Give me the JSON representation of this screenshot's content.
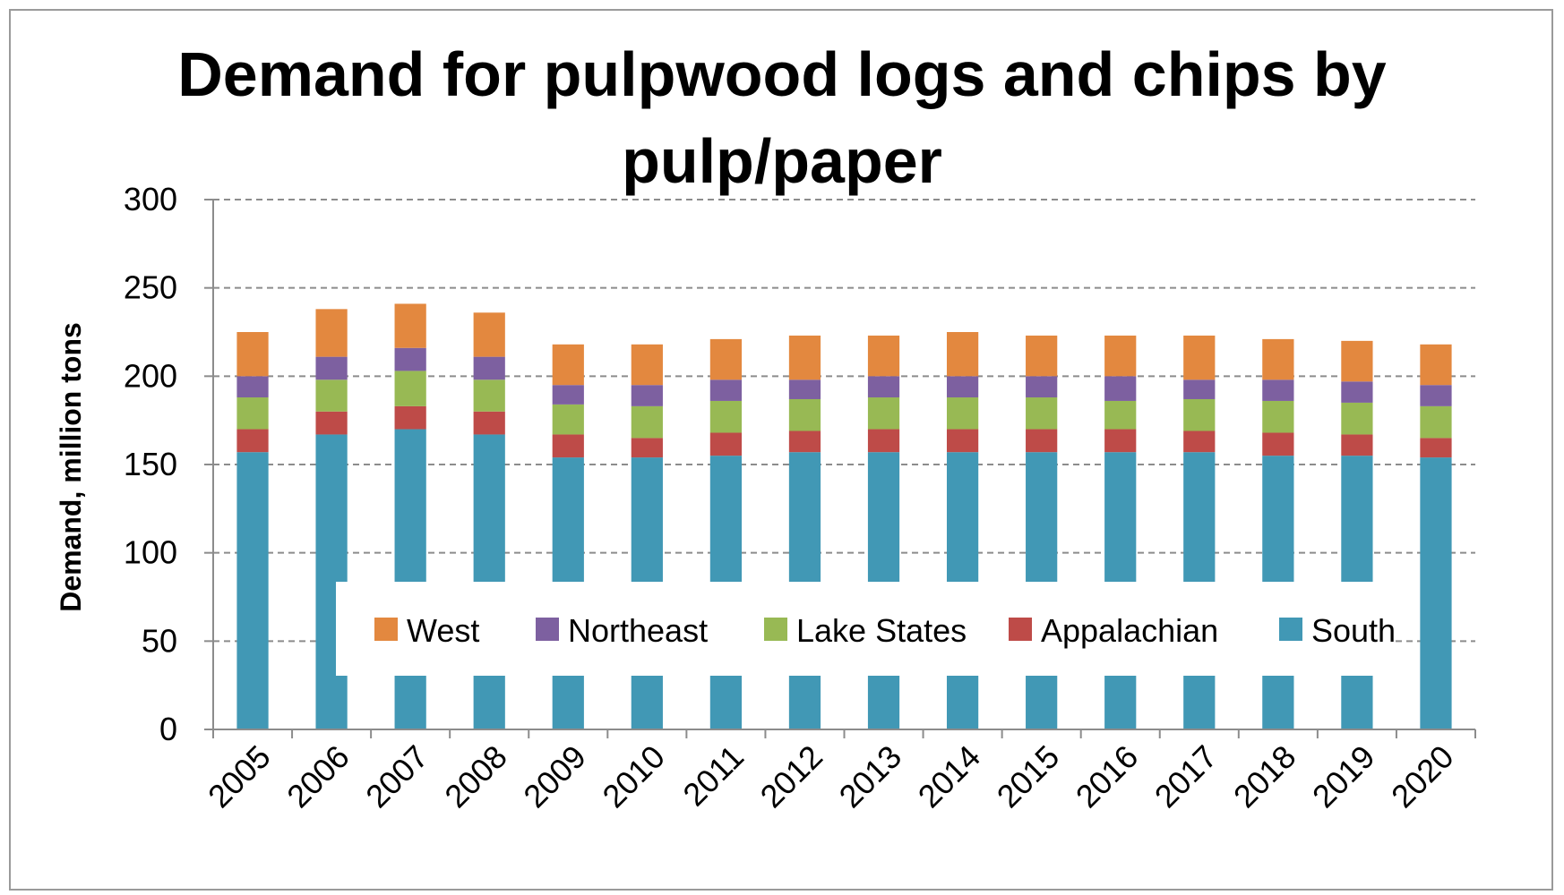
{
  "chart_data": {
    "type": "bar",
    "stacked": true,
    "title_lines": [
      "Demand for pulpwood logs and chips by",
      "pulp/paper"
    ],
    "xlabel": "",
    "ylabel": "Demand, million  tons",
    "ylim": [
      0,
      300
    ],
    "yticks": [
      0,
      50,
      100,
      150,
      200,
      250,
      300
    ],
    "grid": true,
    "legend_position": "bottom-center inside plot",
    "categories": [
      "2005",
      "2006",
      "2007",
      "2008",
      "2009",
      "2010",
      "2011",
      "2012",
      "2013",
      "2014",
      "2015",
      "2016",
      "2017",
      "2018",
      "2019",
      "2020"
    ],
    "series": [
      {
        "name": "South",
        "color": "#4198b5",
        "values": [
          157,
          167,
          170,
          167,
          154,
          154,
          155,
          157,
          157,
          157,
          157,
          157,
          157,
          155,
          155,
          154
        ]
      },
      {
        "name": "Appalachian",
        "color": "#be4b48",
        "values": [
          13,
          13,
          13,
          13,
          13,
          11,
          13,
          12,
          13,
          13,
          13,
          13,
          12,
          13,
          12,
          11
        ]
      },
      {
        "name": "Lake States",
        "color": "#98b954",
        "values": [
          18,
          18,
          20,
          18,
          17,
          18,
          18,
          18,
          18,
          18,
          18,
          16,
          18,
          18,
          18,
          18
        ]
      },
      {
        "name": "Northeast",
        "color": "#7d60a0",
        "values": [
          12,
          13,
          13,
          13,
          11,
          12,
          12,
          11,
          12,
          12,
          12,
          14,
          11,
          12,
          12,
          12
        ]
      },
      {
        "name": "West",
        "color": "#e3883f",
        "values": [
          25,
          27,
          25,
          25,
          23,
          23,
          23,
          25,
          23,
          25,
          23,
          23,
          25,
          23,
          23,
          23
        ]
      }
    ],
    "legend_order": [
      "West",
      "Northeast",
      "Lake States",
      "Appalachian",
      "South"
    ]
  }
}
